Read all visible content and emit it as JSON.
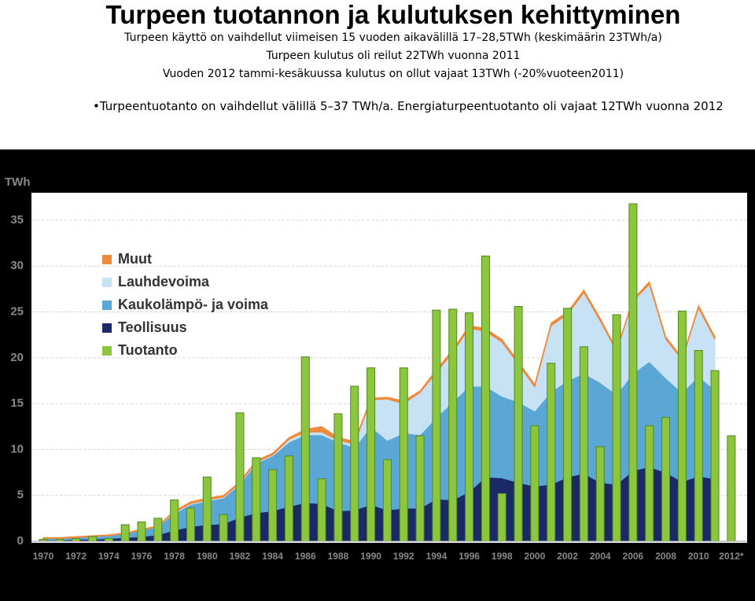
{
  "header": {
    "title": "Turpeen tuotannon ja kulutuksen kehittyminen",
    "lines": [
      "Turpeen käyttö on vaihdellut viimeisen 15 vuoden aikavälillä 17–28,5TWh (keskimäärin 23TWh/a)",
      "Turpeen kulutus oli reilut 22TWh vuonna 2011",
      "Vuoden 2012 tammi-kesäkuussa kulutus on ollut vajaat 13TWh (-20%vuoteen2011)"
    ],
    "bullet": "•Turpeentuotanto on vaihdellut välillä 5–37 TWh/a.  Energiaturpeentuotanto oli vajaat 12TWh vuonna 2012"
  },
  "chart_data": {
    "type": "area",
    "y_label": "TWh",
    "categories": [
      "1970",
      null,
      "1972",
      null,
      "1974",
      null,
      "1976",
      null,
      "1978",
      null,
      "1980",
      null,
      "1982",
      null,
      "1984",
      null,
      "1986",
      null,
      "1988",
      null,
      "1990",
      null,
      "1992",
      null,
      "1994",
      null,
      "1996",
      null,
      "1998",
      null,
      "2000",
      null,
      "2002",
      null,
      "2004",
      null,
      "2006",
      null,
      "2008",
      null,
      "2010",
      null,
      "2012*"
    ],
    "ylim": [
      0,
      38
    ],
    "yticks": [
      0,
      5,
      10,
      15,
      20,
      25,
      30,
      35
    ],
    "grid": true,
    "legend": "upper left",
    "series": [
      {
        "name": "Muut",
        "type": "area",
        "color": "#ef8a3c",
        "values": [
          0.1,
          0.1,
          0.1,
          0.1,
          0.1,
          0.1,
          0.1,
          0.1,
          0.2,
          0.2,
          0.2,
          0.2,
          0.2,
          0.2,
          0.2,
          0.2,
          0.3,
          0.6,
          0.3,
          0.3,
          0.2,
          0.2,
          0.3,
          0.2,
          0.3,
          0.3,
          0.3,
          0.3,
          0.3,
          0.3,
          0.3,
          0.3,
          0.3,
          0.3,
          0.3,
          0.2,
          0.2,
          0.3,
          0.3,
          0.2,
          0.3,
          0.3,
          null
        ]
      },
      {
        "name": "Lauhdevoima",
        "type": "area",
        "color": "#c6e2f4",
        "values": [
          0,
          0,
          0,
          0,
          0,
          0,
          0,
          0,
          0.1,
          0.1,
          0.1,
          0.1,
          0.1,
          0.1,
          0.1,
          0.3,
          0.3,
          0.3,
          0.2,
          0.4,
          2.9,
          4.5,
          3.2,
          4.6,
          4.9,
          5.4,
          6.3,
          6.0,
          5.9,
          4.1,
          2.6,
          7.2,
          7.2,
          8.8,
          6.7,
          4.7,
          7.9,
          8.4,
          4.2,
          3.6,
          7.4,
          5.5,
          null
        ]
      },
      {
        "name": "Kaukolämpö- ja voima",
        "type": "area",
        "color": "#5aa7d5",
        "values": [
          0.2,
          0.2,
          0.2,
          0.3,
          0.3,
          0.4,
          0.7,
          0.9,
          1.8,
          2.4,
          2.6,
          2.8,
          3.6,
          5.4,
          6.0,
          7.0,
          7.4,
          7.5,
          7.5,
          6.8,
          8.5,
          7.6,
          8.2,
          8.0,
          8.9,
          10.7,
          11.5,
          9.9,
          8.9,
          8.8,
          8.2,
          10.1,
          10.5,
          10.9,
          10.9,
          9.8,
          10.6,
          11.5,
          10.3,
          9.7,
          10.9,
          9.7,
          null
        ]
      },
      {
        "name": "Teollisuus",
        "type": "area",
        "color": "#1a2a66",
        "values": [
          0.1,
          0.1,
          0.2,
          0.2,
          0.3,
          0.4,
          0.5,
          0.7,
          1.2,
          1.6,
          1.8,
          1.9,
          2.6,
          3.1,
          3.3,
          3.8,
          4.2,
          4.1,
          3.3,
          3.4,
          4.0,
          3.4,
          3.6,
          3.6,
          4.6,
          4.5,
          5.4,
          7.0,
          6.9,
          6.4,
          6.0,
          6.2,
          7.0,
          7.4,
          6.4,
          6.2,
          7.7,
          8.1,
          7.5,
          6.5,
          7.1,
          6.8,
          null
        ]
      },
      {
        "name": "Tuotanto",
        "type": "bar",
        "color": "#8cc63f",
        "values": [
          0.2,
          0.2,
          0.3,
          0.5,
          0.3,
          1.8,
          2.1,
          2.5,
          4.5,
          3.6,
          7.0,
          2.9,
          14.0,
          9.1,
          7.8,
          9.3,
          20.1,
          6.8,
          13.9,
          16.9,
          18.9,
          8.9,
          18.9,
          11.5,
          25.2,
          25.3,
          24.9,
          31.1,
          5.2,
          25.6,
          12.6,
          19.4,
          25.4,
          21.2,
          10.3,
          24.7,
          36.8,
          12.6,
          13.5,
          25.1,
          20.8,
          18.6,
          11.5
        ]
      }
    ]
  }
}
